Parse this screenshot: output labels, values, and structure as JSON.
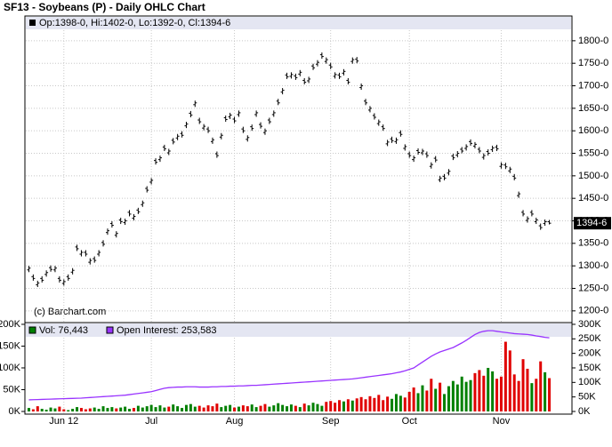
{
  "chart_data": [
    {
      "type": "ohlc",
      "title": "SF13 - Soybeans (P) - Daily OHLC Chart",
      "legend_text": "Op:1398-0, Hi:1402-0, Lo:1392-0, Cl:1394-6",
      "credit": "(c) Barchart.com",
      "last_price": {
        "value": 1394.75,
        "label": "1394-6"
      },
      "color": "#000000",
      "ylim": [
        1174,
        1855
      ],
      "yticks": [
        {
          "value": 1200,
          "label": "1200-0"
        },
        {
          "value": 1250,
          "label": "1250-0"
        },
        {
          "value": 1300,
          "label": "1300-0"
        },
        {
          "value": 1350,
          "label": "1350-0"
        },
        {
          "value": 1400,
          "label": "1400-0"
        },
        {
          "value": 1450,
          "label": "1450-0"
        },
        {
          "value": 1500,
          "label": "1500-0"
        },
        {
          "value": 1550,
          "label": "1550-0"
        },
        {
          "value": 1600,
          "label": "1600-0"
        },
        {
          "value": 1650,
          "label": "1650-0"
        },
        {
          "value": 1700,
          "label": "1700-0"
        },
        {
          "value": 1750,
          "label": "1750-0"
        },
        {
          "value": 1800,
          "label": "1800-0"
        }
      ],
      "grid": true,
      "open": [
        1291,
        1276,
        1258,
        1272,
        1281,
        1296,
        1291,
        1272,
        1261,
        1276,
        1286,
        1342,
        1326,
        1330,
        1308,
        1316,
        1326,
        1352,
        1374,
        1394,
        1368,
        1402,
        1396,
        1419,
        1406,
        1424,
        1436,
        1472,
        1486,
        1534,
        1536,
        1564,
        1551,
        1579,
        1584,
        1594,
        1611,
        1639,
        1658,
        1624,
        1606,
        1604,
        1576,
        1549,
        1586,
        1629,
        1631,
        1626,
        1636,
        1604,
        1581,
        1609,
        1636,
        1614,
        1596,
        1624,
        1636,
        1666,
        1686,
        1724,
        1721,
        1722,
        1726,
        1712,
        1711,
        1744,
        1748,
        1769,
        1754,
        1746,
        1721,
        1724,
        1728,
        1712,
        1754,
        1759,
        1696,
        1666,
        1646,
        1634,
        1616,
        1609,
        1571,
        1582,
        1576,
        1596,
        1561,
        1549,
        1536,
        1556,
        1551,
        1549,
        1521,
        1539,
        1491,
        1499,
        1506,
        1544,
        1546,
        1559,
        1561,
        1576,
        1566,
        1559,
        1541,
        1554,
        1558,
        1564,
        1521,
        1524,
        1511,
        1499,
        1456,
        1419,
        1401,
        1419,
        1398,
        1389,
        1394,
        1398
      ],
      "high": [
        1300,
        1281,
        1267,
        1277,
        1290,
        1301,
        1300,
        1277,
        1270,
        1281,
        1295,
        1347,
        1335,
        1335,
        1317,
        1321,
        1335,
        1357,
        1383,
        1399,
        1377,
        1407,
        1405,
        1424,
        1415,
        1429,
        1445,
        1477,
        1495,
        1539,
        1545,
        1569,
        1560,
        1584,
        1593,
        1599,
        1620,
        1644,
        1667,
        1629,
        1615,
        1609,
        1585,
        1554,
        1595,
        1634,
        1640,
        1631,
        1645,
        1609,
        1590,
        1614,
        1645,
        1619,
        1605,
        1629,
        1645,
        1671,
        1695,
        1729,
        1730,
        1727,
        1735,
        1717,
        1720,
        1749,
        1757,
        1774,
        1763,
        1751,
        1730,
        1729,
        1737,
        1717,
        1763,
        1764,
        1705,
        1671,
        1655,
        1639,
        1625,
        1614,
        1580,
        1587,
        1585,
        1601,
        1570,
        1554,
        1545,
        1561,
        1560,
        1554,
        1530,
        1544,
        1500,
        1504,
        1515,
        1549,
        1555,
        1564,
        1570,
        1581,
        1575,
        1564,
        1550,
        1559,
        1567,
        1569,
        1530,
        1529,
        1520,
        1504,
        1465,
        1424,
        1410,
        1424,
        1407,
        1394,
        1403,
        1402
      ],
      "low": [
        1286,
        1267,
        1253,
        1263,
        1276,
        1287,
        1286,
        1263,
        1256,
        1267,
        1281,
        1333,
        1321,
        1321,
        1303,
        1307,
        1321,
        1343,
        1369,
        1385,
        1363,
        1393,
        1391,
        1410,
        1401,
        1415,
        1431,
        1463,
        1481,
        1525,
        1531,
        1555,
        1546,
        1570,
        1579,
        1585,
        1606,
        1630,
        1653,
        1615,
        1601,
        1595,
        1571,
        1540,
        1581,
        1620,
        1626,
        1617,
        1631,
        1595,
        1576,
        1600,
        1631,
        1605,
        1591,
        1615,
        1631,
        1657,
        1681,
        1715,
        1716,
        1713,
        1721,
        1703,
        1706,
        1735,
        1743,
        1760,
        1749,
        1737,
        1716,
        1715,
        1723,
        1703,
        1749,
        1750,
        1691,
        1657,
        1641,
        1625,
        1611,
        1600,
        1566,
        1573,
        1571,
        1587,
        1556,
        1540,
        1531,
        1547,
        1546,
        1540,
        1516,
        1530,
        1486,
        1490,
        1501,
        1535,
        1541,
        1550,
        1556,
        1567,
        1561,
        1550,
        1536,
        1545,
        1553,
        1555,
        1516,
        1515,
        1506,
        1490,
        1451,
        1410,
        1396,
        1410,
        1393,
        1380,
        1389,
        1392
      ],
      "close": [
        1295,
        1272,
        1262,
        1268,
        1285,
        1292,
        1295,
        1268,
        1265,
        1272,
        1290,
        1338,
        1330,
        1326,
        1312,
        1312,
        1330,
        1348,
        1378,
        1390,
        1372,
        1398,
        1400,
        1415,
        1410,
        1420,
        1440,
        1468,
        1490,
        1530,
        1540,
        1560,
        1555,
        1575,
        1588,
        1590,
        1615,
        1635,
        1662,
        1620,
        1610,
        1600,
        1580,
        1545,
        1590,
        1625,
        1635,
        1622,
        1640,
        1600,
        1585,
        1605,
        1640,
        1610,
        1600,
        1620,
        1640,
        1662,
        1690,
        1720,
        1725,
        1718,
        1730,
        1708,
        1715,
        1740,
        1752,
        1765,
        1758,
        1742,
        1725,
        1720,
        1732,
        1708,
        1758,
        1755,
        1700,
        1662,
        1650,
        1630,
        1620,
        1605,
        1575,
        1578,
        1580,
        1592,
        1565,
        1545,
        1540,
        1552,
        1555,
        1545,
        1525,
        1535,
        1495,
        1495,
        1510,
        1540,
        1550,
        1555,
        1565,
        1572,
        1570,
        1555,
        1545,
        1550,
        1562,
        1560,
        1525,
        1520,
        1515,
        1495,
        1460,
        1415,
        1405,
        1415,
        1402,
        1385,
        1398,
        1394.75
      ]
    },
    {
      "type": "bar",
      "categories": [
        null,
        null,
        null,
        null,
        null,
        null,
        null,
        null,
        "Jun 12",
        null,
        null,
        null,
        null,
        null,
        null,
        null,
        null,
        null,
        null,
        null,
        null,
        null,
        null,
        null,
        null,
        null,
        null,
        null,
        "Jul",
        null,
        null,
        null,
        null,
        null,
        null,
        null,
        null,
        null,
        null,
        null,
        null,
        null,
        null,
        null,
        null,
        null,
        null,
        "Aug",
        null,
        null,
        null,
        null,
        null,
        null,
        null,
        null,
        null,
        null,
        null,
        null,
        null,
        null,
        null,
        null,
        null,
        null,
        null,
        null,
        null,
        "Sep",
        null,
        null,
        null,
        null,
        null,
        null,
        null,
        null,
        null,
        null,
        null,
        null,
        null,
        null,
        null,
        null,
        null,
        "Oct",
        null,
        null,
        null,
        null,
        null,
        null,
        null,
        null,
        null,
        null,
        null,
        null,
        null,
        null,
        null,
        null,
        null,
        null,
        null,
        null,
        "Nov",
        null,
        null,
        null,
        null,
        null,
        null,
        null,
        null,
        null,
        null,
        null
      ],
      "ylim": [
        0,
        204000
      ],
      "yticks": [
        {
          "value": 0,
          "label": "0K"
        },
        {
          "value": 50000,
          "label": "50K"
        },
        {
          "value": 100000,
          "label": "100K"
        },
        {
          "value": 150000,
          "label": "150K"
        },
        {
          "value": 200000,
          "label": "200K"
        }
      ],
      "y2lim": [
        0,
        306000
      ],
      "y2ticks": [
        {
          "value": 0,
          "label": "0K"
        },
        {
          "value": 50000,
          "label": "50K"
        },
        {
          "value": 100000,
          "label": "100K"
        },
        {
          "value": 150000,
          "label": "150K"
        },
        {
          "value": 200000,
          "label": "200K"
        },
        {
          "value": 250000,
          "label": "250K"
        },
        {
          "value": 300000,
          "label": "300K"
        }
      ],
      "series": [
        {
          "name": "Vol: 76,443",
          "color": "#008000",
          "down_color": "#e00000",
          "values": [
            8000,
            5000,
            12000,
            6000,
            4000,
            9000,
            7000,
            11000,
            5000,
            3000,
            6000,
            10000,
            8000,
            5000,
            7000,
            9000,
            6000,
            12000,
            8000,
            10000,
            7000,
            9000,
            11000,
            6000,
            8000,
            13000,
            9000,
            12000,
            15000,
            10000,
            14000,
            9000,
            11000,
            16000,
            12000,
            8000,
            15000,
            17000,
            11000,
            13000,
            9000,
            14000,
            12000,
            18000,
            10000,
            13000,
            15000,
            9000,
            11000,
            14000,
            12000,
            16000,
            10000,
            13000,
            17000,
            11000,
            14000,
            19000,
            15000,
            12000,
            16000,
            13000,
            10000,
            18000,
            14000,
            20000,
            17000,
            13000,
            22000,
            24000,
            20000,
            26000,
            23000,
            28000,
            25000,
            30000,
            33000,
            28000,
            35000,
            31000,
            38000,
            26000,
            34000,
            29000,
            40000,
            36000,
            32000,
            45000,
            55000,
            42000,
            60000,
            48000,
            75000,
            52000,
            66000,
            40000,
            58000,
            70000,
            62000,
            80000,
            68000,
            72000,
            88000,
            95000,
            82000,
            100000,
            92000,
            75000,
            80000,
            160000,
            140000,
            85000,
            70000,
            120000,
            98000,
            65000,
            75000,
            115000,
            90000,
            76443
          ]
        },
        {
          "name": "Open Interest: 253,583",
          "color": "#9933ff",
          "axis": "y2",
          "values": [
            40000,
            40500,
            41000,
            41500,
            42000,
            42500,
            43000,
            43500,
            44000,
            44500,
            45000,
            45500,
            46000,
            47000,
            48000,
            49000,
            50000,
            51000,
            52000,
            53000,
            54000,
            55000,
            56000,
            58000,
            60000,
            62000,
            64000,
            66000,
            68000,
            72000,
            76000,
            80000,
            82000,
            83000,
            84000,
            84000,
            85000,
            85000,
            85000,
            84000,
            84000,
            84000,
            85000,
            85000,
            86000,
            86000,
            87000,
            87000,
            88000,
            88000,
            89000,
            90000,
            90000,
            91000,
            92000,
            93000,
            94000,
            95000,
            96000,
            97000,
            98000,
            99000,
            100000,
            101000,
            102000,
            103000,
            104000,
            105000,
            106000,
            107000,
            108000,
            109000,
            110000,
            111000,
            112000,
            114000,
            116000,
            118000,
            120000,
            122000,
            124000,
            126000,
            128000,
            130000,
            133000,
            136000,
            140000,
            145000,
            150000,
            160000,
            170000,
            180000,
            190000,
            198000,
            205000,
            210000,
            215000,
            220000,
            228000,
            236000,
            245000,
            255000,
            265000,
            272000,
            276000,
            278000,
            278000,
            276000,
            274000,
            272000,
            270000,
            268000,
            267000,
            266000,
            265000,
            263000,
            260000,
            258000,
            255000,
            253583
          ]
        }
      ]
    }
  ]
}
